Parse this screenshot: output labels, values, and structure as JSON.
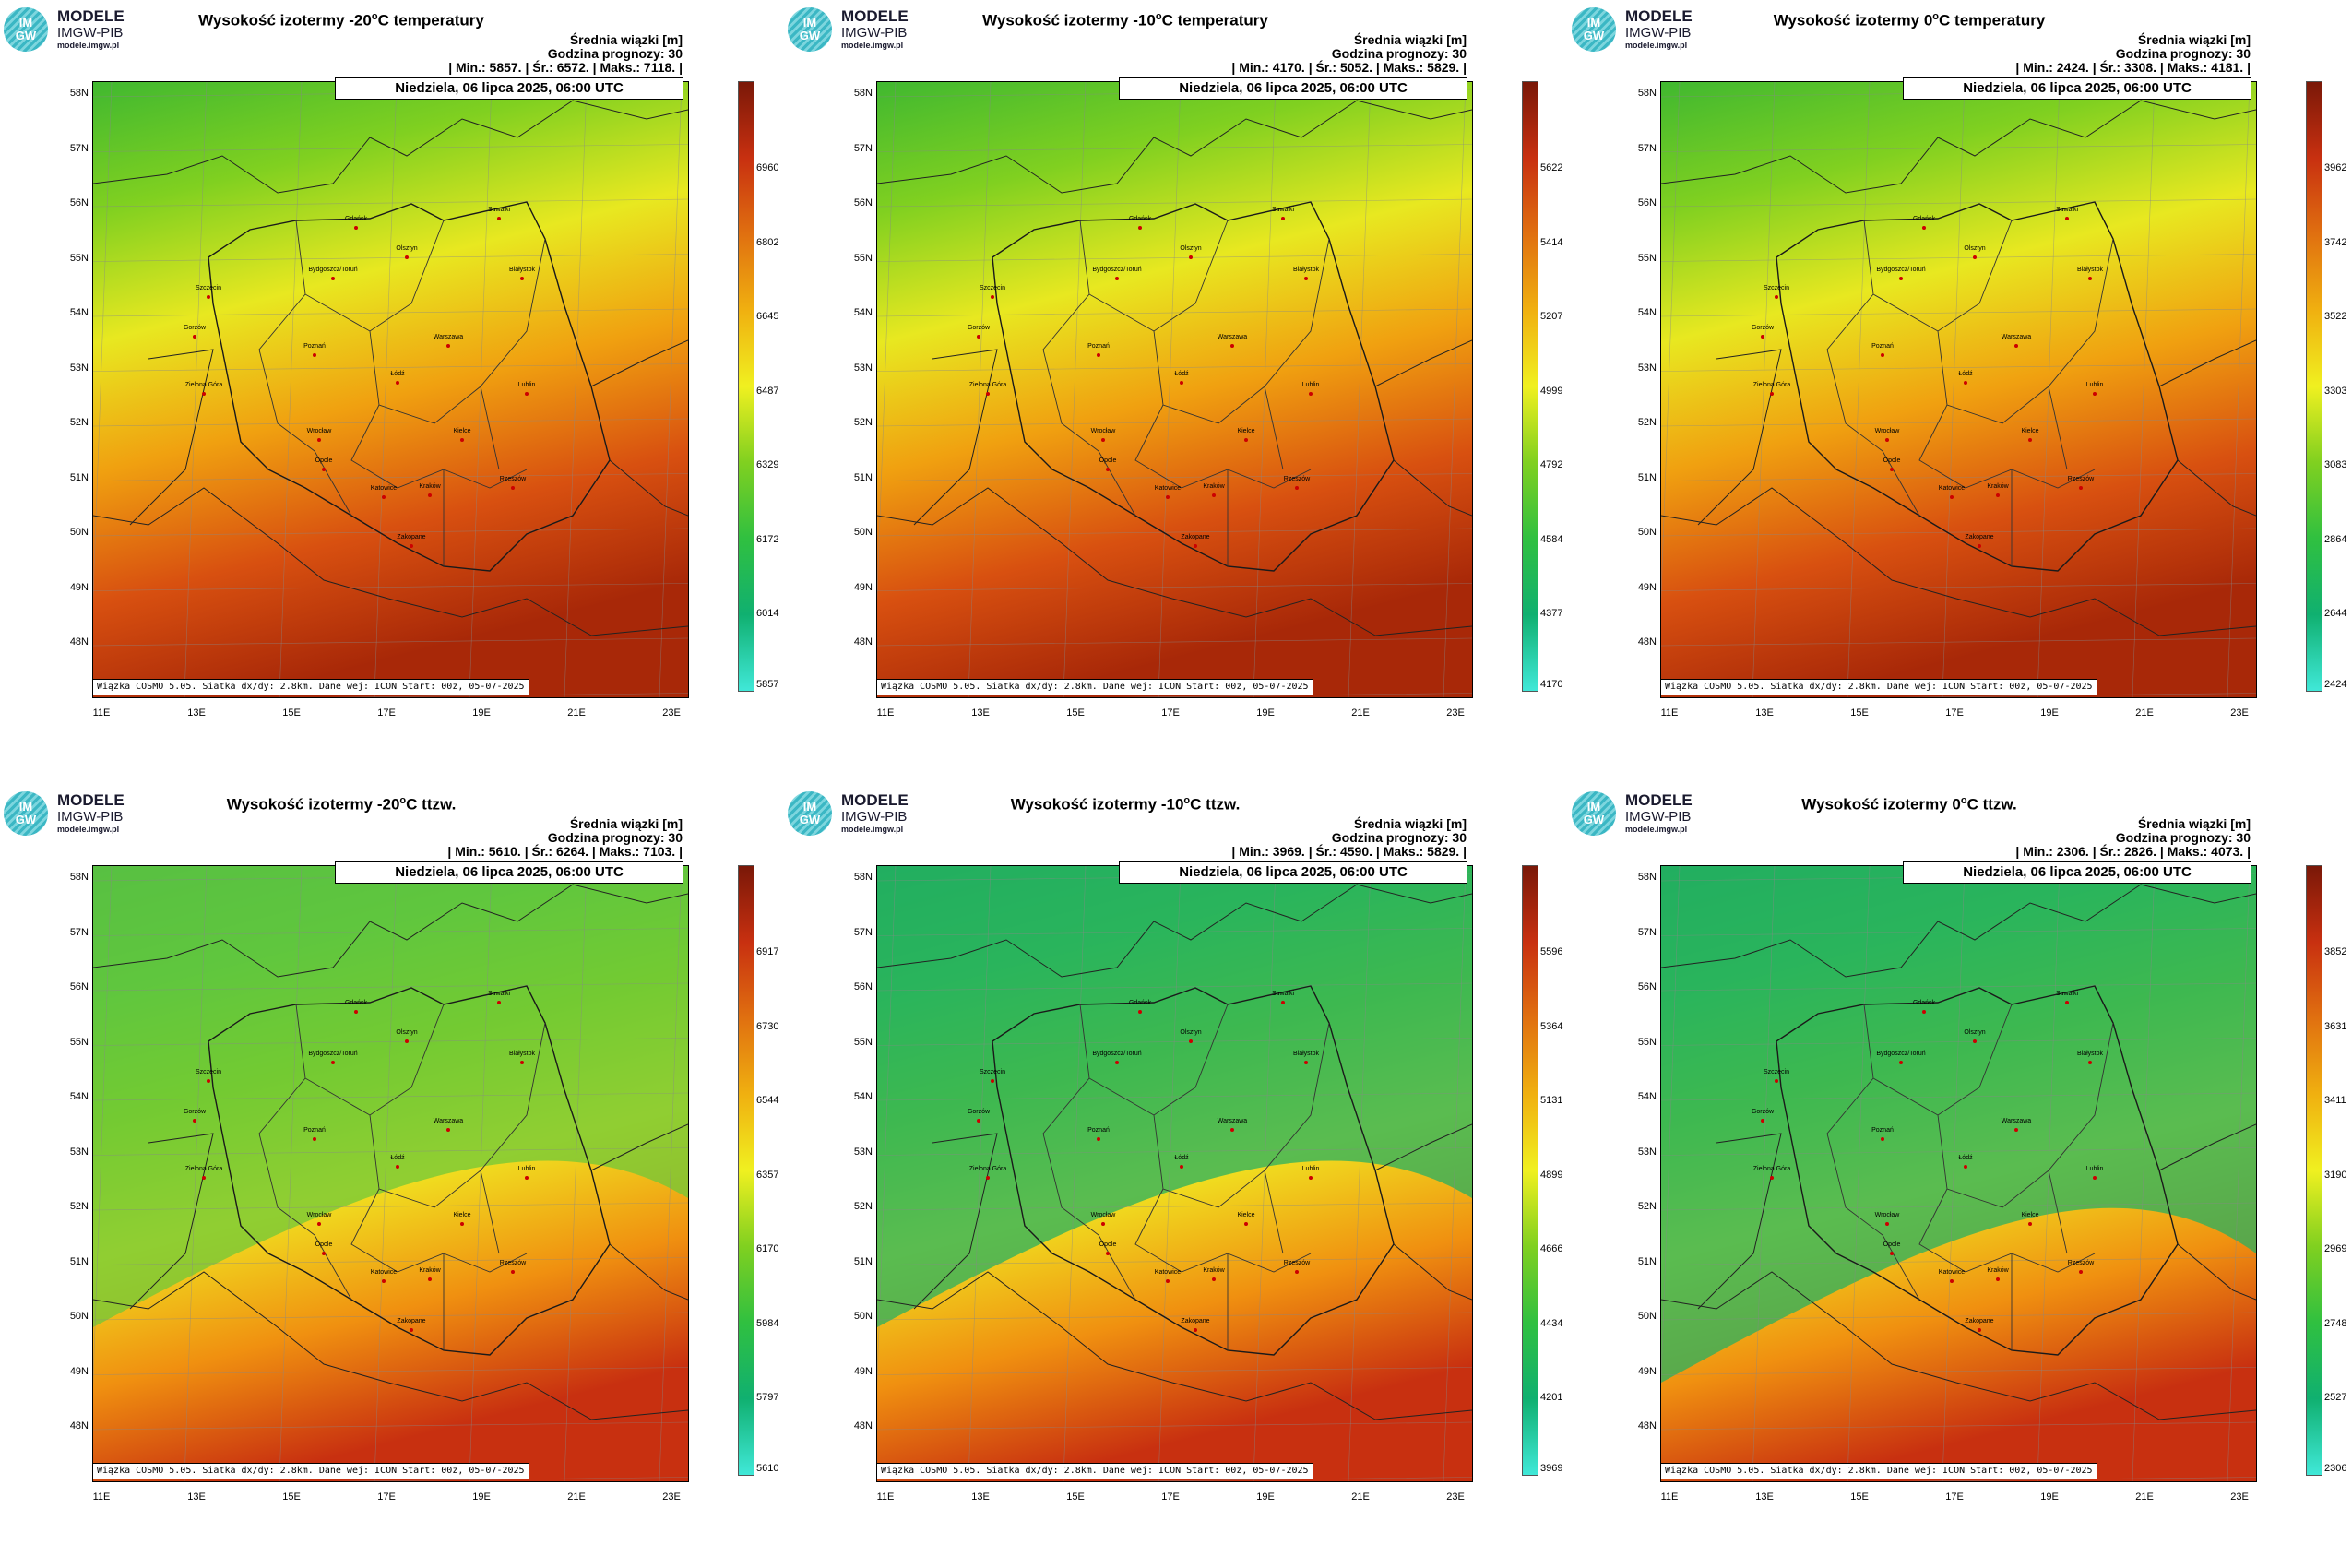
{
  "logo": {
    "line1": "MODELE",
    "line2": "IMGW-PIB",
    "line3": "modele.imgw.pl",
    "circle_top": "IM",
    "circle_bottom": "GW"
  },
  "common": {
    "info_line1": "Średnia wiązki [m]",
    "info_line2": "Godzina prognozy: 30",
    "date": "Niedziela, 06 lipca 2025, 06:00 UTC",
    "footer": "Wiązka COSMO 5.05. Siatka dx/dy: 2.8km. Dane wej: ICON Start: 00z, 05-07-2025",
    "lat_labels": [
      "58N",
      "57N",
      "56N",
      "55N",
      "54N",
      "53N",
      "52N",
      "51N",
      "50N",
      "49N",
      "48N"
    ],
    "lon_labels": [
      "11E",
      "13E",
      "15E",
      "17E",
      "19E",
      "21E",
      "23E"
    ]
  },
  "cities": [
    "Gdańsk",
    "Olsztyn",
    "Suwałki",
    "Szczecin",
    "Bydgoszcz/Toruń",
    "Białystok",
    "Gorzów",
    "Poznań",
    "Warszawa",
    "Zielona Góra",
    "Łódź",
    "Lublin",
    "Wrocław",
    "Kielce",
    "Opole",
    "Katowice",
    "Kraków",
    "Rzeszów",
    "Zakopane"
  ],
  "panels": [
    {
      "title_pre": "Wysokość izotermy -20",
      "title_post": "C temperatury",
      "stats": "| Min.: 5857. | Śr.: 6572. | Maks.: 7118. |",
      "colorbar": [
        "6960",
        "6802",
        "6645",
        "6487",
        "6329",
        "6172",
        "6014",
        "5857"
      ],
      "map_level": 0.72
    },
    {
      "title_pre": "Wysokość izotermy -10",
      "title_post": "C temperatury",
      "stats": "| Min.: 4170. | Śr.: 5052. | Maks.: 5829. |",
      "colorbar": [
        "5622",
        "5414",
        "5207",
        "4999",
        "4792",
        "4584",
        "4377",
        "4170"
      ],
      "map_level": 0.65
    },
    {
      "title_pre": "Wysokość izotermy 0",
      "title_post": "C temperatury",
      "stats": "| Min.: 2424. | Śr.: 3308. | Maks.: 4181. |",
      "colorbar": [
        "3962",
        "3742",
        "3522",
        "3303",
        "3083",
        "2864",
        "2644",
        "2424"
      ],
      "map_level": 0.58
    },
    {
      "title_pre": "Wysokość izotermy -20",
      "title_post": "C ttzw.",
      "stats": "| Min.: 5610. | Śr.: 6264. | Maks.: 7103. |",
      "colorbar": [
        "6917",
        "6730",
        "6544",
        "6357",
        "6170",
        "5984",
        "5797",
        "5610"
      ],
      "map_level": 0.5
    },
    {
      "title_pre": "Wysokość izotermy -10",
      "title_post": "C ttzw.",
      "stats": "| Min.: 3969. | Śr.: 4590. | Maks.: 5829. |",
      "colorbar": [
        "5596",
        "5364",
        "5131",
        "4899",
        "4666",
        "4434",
        "4201",
        "3969"
      ],
      "map_level": 0.35
    },
    {
      "title_pre": "Wysokość izotermy 0",
      "title_post": "C ttzw.",
      "stats": "| Min.: 2306. | Śr.: 2826. | Maks.: 4073. |",
      "colorbar": [
        "3852",
        "3631",
        "3411",
        "3190",
        "2969",
        "2748",
        "2527",
        "2306"
      ],
      "map_level": 0.3
    }
  ]
}
